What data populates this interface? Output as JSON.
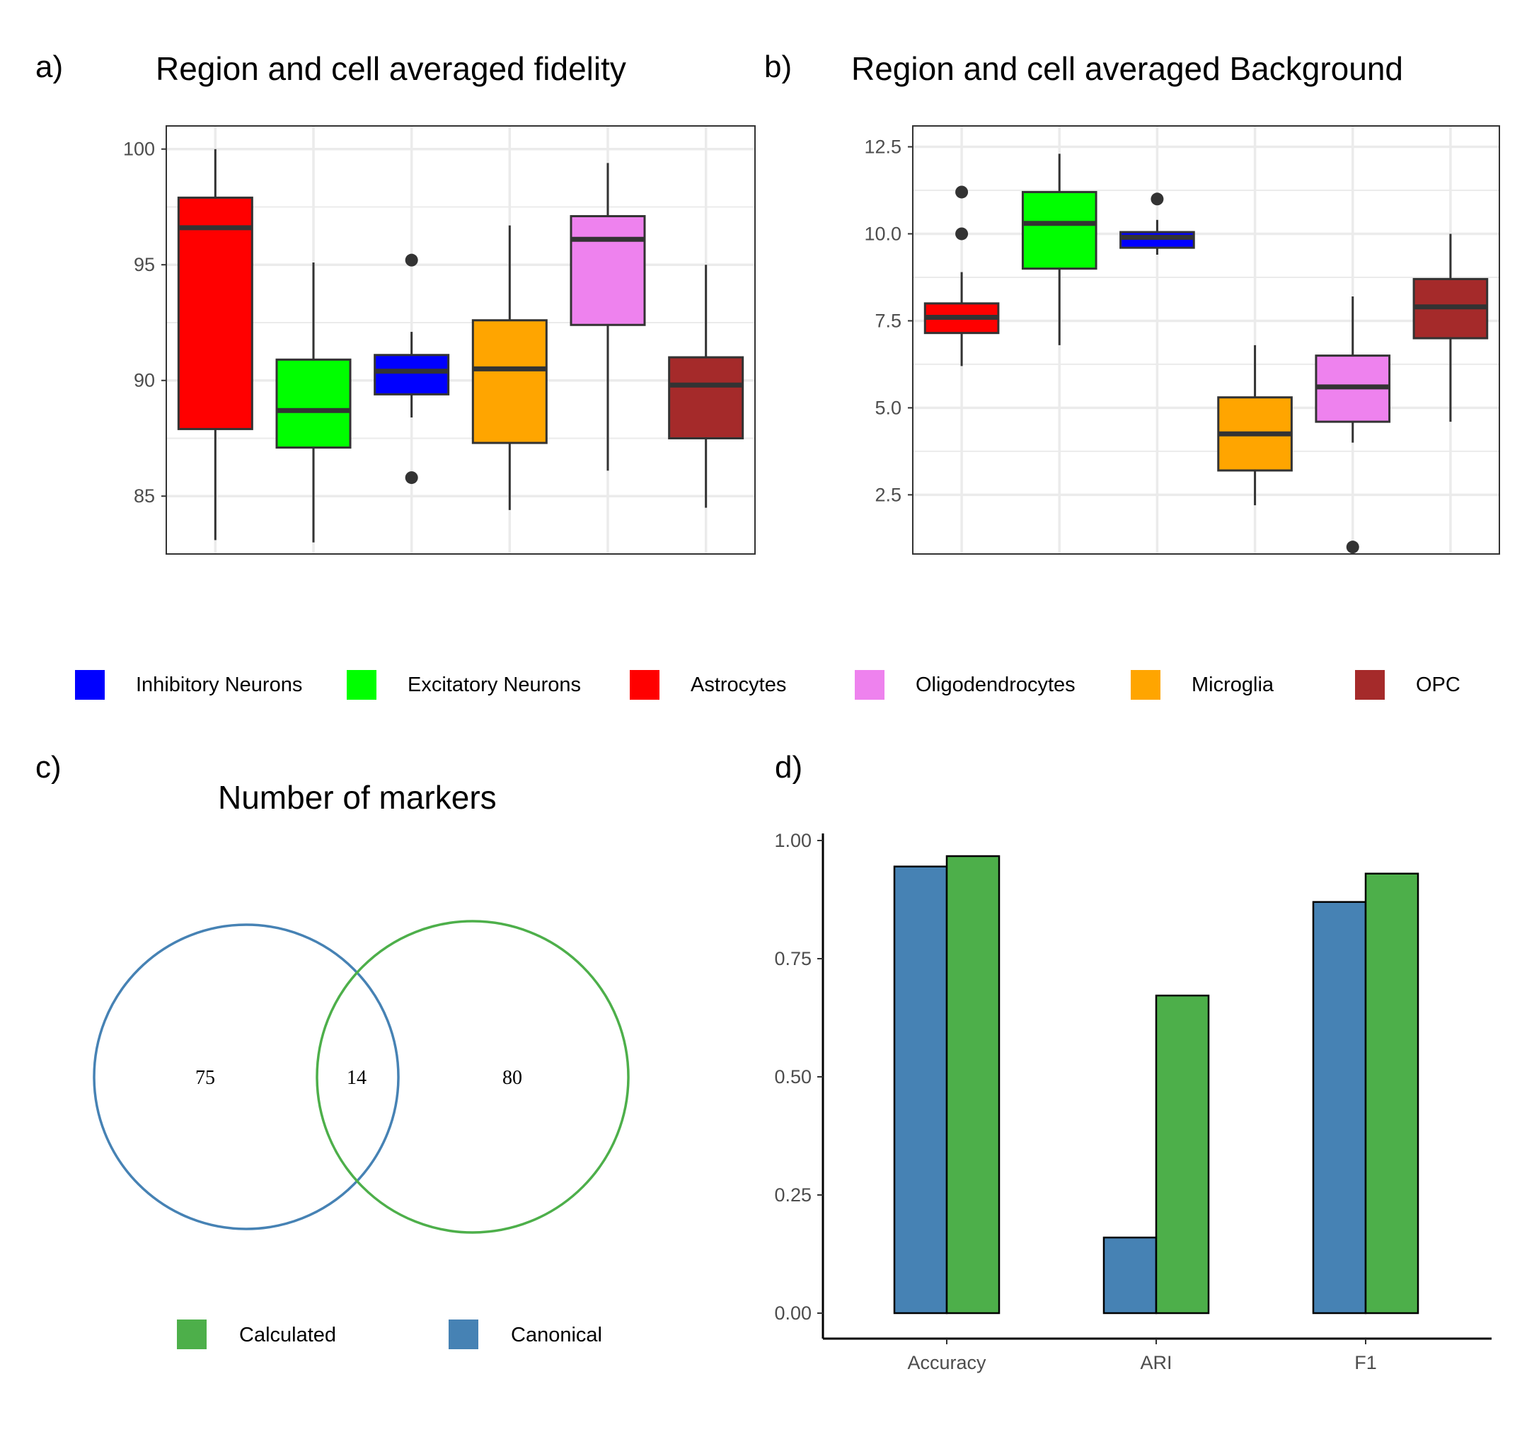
{
  "panels": {
    "a": {
      "letter": "a)",
      "title": "Region and cell averaged fidelity"
    },
    "b": {
      "letter": "b)",
      "title": "Region and cell averaged Background"
    },
    "c": {
      "letter": "c)",
      "title": "Number of markers"
    },
    "d": {
      "letter": "d)",
      "title": ""
    }
  },
  "legend_top": [
    {
      "label": "Inhibitory Neurons",
      "color": "#0000FF"
    },
    {
      "label": "Excitatory Neurons",
      "color": "#00FF00"
    },
    {
      "label": "Astrocytes",
      "color": "#FF0000"
    },
    {
      "label": "Oligodendrocytes",
      "color": "#EE82EE"
    },
    {
      "label": "Microglia",
      "color": "#FFA500"
    },
    {
      "label": "OPC",
      "color": "#A52A2A"
    }
  ],
  "legend_bottom": [
    {
      "label": "Calculated",
      "color": "#4DAF4A"
    },
    {
      "label": "Canonical",
      "color": "#4682B4"
    }
  ],
  "chart_data": [
    {
      "id": "a",
      "type": "boxplot",
      "title": "Region and cell averaged fidelity",
      "ylim": [
        82.5,
        101
      ],
      "yticks": [
        85,
        90,
        95,
        100
      ],
      "grid": true,
      "boxes": [
        {
          "group": "Astrocytes",
          "color": "#FF0000",
          "min": 83.1,
          "q1": 87.9,
          "median": 96.6,
          "q3": 97.9,
          "max": 100.0,
          "outliers": []
        },
        {
          "group": "Excitatory Neurons",
          "color": "#00FF00",
          "min": 83.0,
          "q1": 87.1,
          "median": 88.7,
          "q3": 90.9,
          "max": 95.1,
          "outliers": []
        },
        {
          "group": "Inhibitory Neurons",
          "color": "#0000FF",
          "min": 88.4,
          "q1": 89.4,
          "median": 90.4,
          "q3": 91.1,
          "max": 92.1,
          "outliers": [
            95.2,
            85.8
          ]
        },
        {
          "group": "Microglia",
          "color": "#FFA500",
          "min": 84.4,
          "q1": 87.3,
          "median": 90.5,
          "q3": 92.6,
          "max": 96.7,
          "outliers": []
        },
        {
          "group": "Oligodendrocytes",
          "color": "#EE82EE",
          "min": 86.1,
          "q1": 92.4,
          "median": 96.1,
          "q3": 97.1,
          "max": 99.4,
          "outliers": []
        },
        {
          "group": "OPC",
          "color": "#A52A2A",
          "min": 84.5,
          "q1": 87.5,
          "median": 89.8,
          "q3": 91.0,
          "max": 95.0,
          "outliers": []
        }
      ]
    },
    {
      "id": "b",
      "type": "boxplot",
      "title": "Region and cell averaged Background",
      "ylim": [
        0.8,
        13.1
      ],
      "yticks": [
        2.5,
        5.0,
        7.5,
        10.0,
        12.5
      ],
      "ytick_labels": [
        "2.5",
        "5.0",
        "7.5",
        "10.0",
        "12.5"
      ],
      "grid": true,
      "boxes": [
        {
          "group": "Astrocytes",
          "color": "#FF0000",
          "min": 6.2,
          "q1": 7.15,
          "median": 7.6,
          "q3": 8.0,
          "max": 8.9,
          "outliers": [
            11.2,
            10.0
          ]
        },
        {
          "group": "Excitatory Neurons",
          "color": "#00FF00",
          "min": 6.8,
          "q1": 9.0,
          "median": 10.3,
          "q3": 11.2,
          "max": 12.3,
          "outliers": []
        },
        {
          "group": "Inhibitory Neurons",
          "color": "#0000FF",
          "min": 9.4,
          "q1": 9.6,
          "median": 9.9,
          "q3": 10.05,
          "max": 10.4,
          "outliers": [
            11.0
          ]
        },
        {
          "group": "Microglia",
          "color": "#FFA500",
          "min": 2.2,
          "q1": 3.2,
          "median": 4.25,
          "q3": 5.3,
          "max": 6.8,
          "outliers": []
        },
        {
          "group": "Oligodendrocytes",
          "color": "#EE82EE",
          "min": 4.0,
          "q1": 4.6,
          "median": 5.6,
          "q3": 6.5,
          "max": 8.2,
          "outliers": [
            1.0
          ]
        },
        {
          "group": "OPC",
          "color": "#A52A2A",
          "min": 4.6,
          "q1": 7.0,
          "median": 7.9,
          "q3": 8.7,
          "max": 10.0,
          "outliers": []
        }
      ]
    },
    {
      "id": "c",
      "type": "venn",
      "title": "Number of markers",
      "sets": [
        {
          "name": "Canonical",
          "color": "#4682B4",
          "only": 75
        },
        {
          "name": "Calculated",
          "color": "#4DAF4A",
          "only": 80
        }
      ],
      "intersection": 14,
      "labels": [
        "75",
        "14",
        "80"
      ]
    },
    {
      "id": "d",
      "type": "bar",
      "categories": [
        "Accuracy",
        "ARI",
        "F1"
      ],
      "series": [
        {
          "name": "Canonical",
          "color": "#4682B4",
          "values": [
            0.945,
            0.16,
            0.87
          ]
        },
        {
          "name": "Calculated",
          "color": "#4DAF4A",
          "values": [
            0.967,
            0.672,
            0.93
          ]
        }
      ],
      "ylim": [
        0,
        1.0
      ],
      "yticks": [
        0,
        0.25,
        0.5,
        0.75,
        1.0
      ],
      "ytick_labels": [
        "0.00",
        "0.25",
        "0.50",
        "0.75",
        "1.00"
      ],
      "grid": false
    }
  ]
}
